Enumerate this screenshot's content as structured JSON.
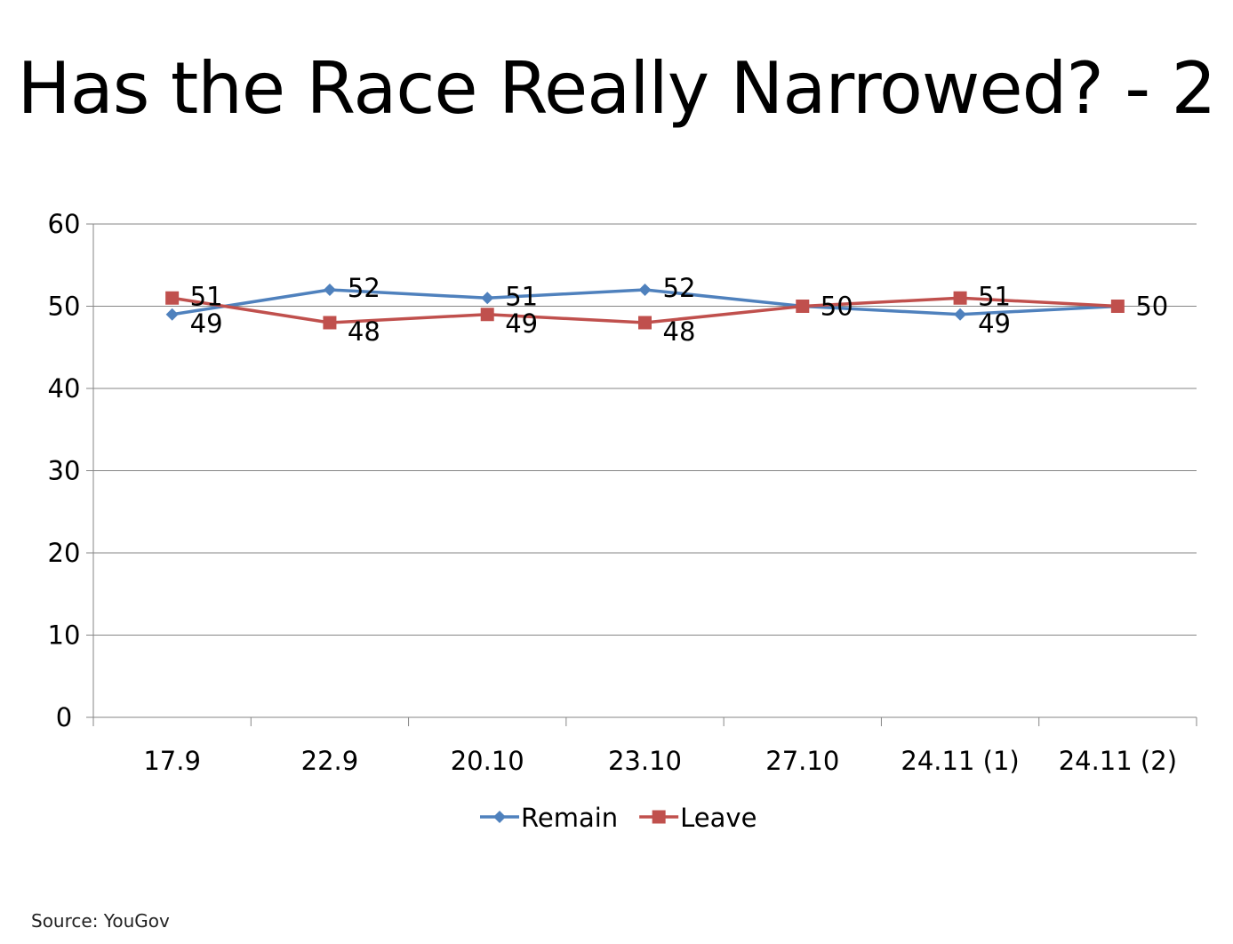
{
  "slide": {
    "title": "Has the Race Really Narrowed? - 2",
    "source": "Source: YouGov"
  },
  "chart_data": {
    "type": "line",
    "title": "Has the Race Really Narrowed? - 2",
    "xlabel": "",
    "ylabel": "",
    "categories": [
      "17.9",
      "22.9",
      "20.10",
      "23.10",
      "27.10",
      "24.11 (1)",
      "24.11 (2)"
    ],
    "ylim": [
      0,
      60
    ],
    "yticks": [
      0,
      10,
      20,
      30,
      40,
      50,
      60
    ],
    "grid": true,
    "legend_position": "bottom",
    "series": [
      {
        "name": "Remain",
        "values": [
          49,
          52,
          51,
          52,
          50,
          49,
          50
        ],
        "color": "#4F81BD",
        "marker": "diamond"
      },
      {
        "name": "Leave",
        "values": [
          51,
          48,
          49,
          48,
          50,
          51,
          50
        ],
        "color": "#C0504D",
        "marker": "square"
      }
    ]
  }
}
